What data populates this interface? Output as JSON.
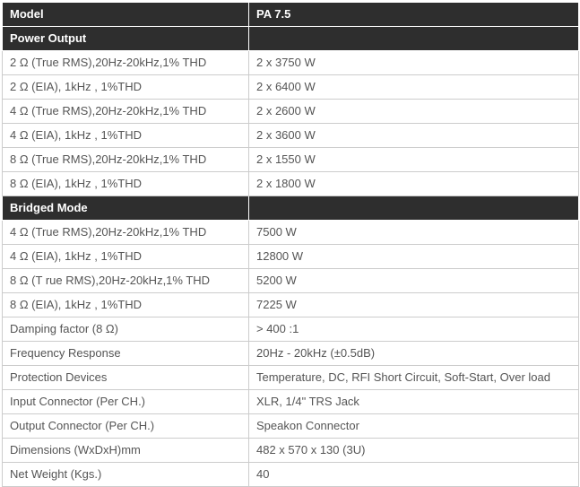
{
  "colors": {
    "section_header_bg": "#2e2e2e",
    "section_header_text": "#ffffff",
    "cell_text": "#555555",
    "cell_border": "#cccccc"
  },
  "rows": [
    {
      "type": "header",
      "label": "Model",
      "value": "PA 7.5"
    },
    {
      "type": "section",
      "label": "Power Output",
      "value": ""
    },
    {
      "type": "data",
      "label": "2 Ω (True RMS),20Hz-20kHz,1% THD",
      "value": "2 x 3750 W"
    },
    {
      "type": "data",
      "label": "2 Ω (EIA), 1kHz , 1%THD",
      "value": "2 x 6400 W"
    },
    {
      "type": "data",
      "label": "4 Ω (True RMS),20Hz-20kHz,1% THD",
      "value": "2 x 2600 W"
    },
    {
      "type": "data",
      "label": "4 Ω (EIA), 1kHz , 1%THD",
      "value": "2 x 3600 W"
    },
    {
      "type": "data",
      "label": "8 Ω (True RMS),20Hz-20kHz,1% THD",
      "value": "2 x 1550 W"
    },
    {
      "type": "data",
      "label": "8 Ω (EIA), 1kHz , 1%THD",
      "value": "2 x 1800 W"
    },
    {
      "type": "section",
      "label": "Bridged Mode",
      "value": ""
    },
    {
      "type": "data",
      "label": "4 Ω (True RMS),20Hz-20kHz,1% THD",
      "value": "7500 W"
    },
    {
      "type": "data",
      "label": "4 Ω (EIA), 1kHz , 1%THD",
      "value": "12800 W"
    },
    {
      "type": "data",
      "label": "8 Ω (T rue RMS),20Hz-20kHz,1% THD",
      "value": "5200 W"
    },
    {
      "type": "data",
      "label": "8 Ω (EIA), 1kHz , 1%THD",
      "value": "7225 W"
    },
    {
      "type": "data",
      "label": "Damping factor (8 Ω)",
      "value": "> 400 :1"
    },
    {
      "type": "data",
      "label": "Frequency Response",
      "value": "20Hz - 20kHz (±0.5dB)"
    },
    {
      "type": "data",
      "label": "Protection Devices",
      "value": "Temperature, DC, RFI Short Circuit, Soft-Start, Over load"
    },
    {
      "type": "data",
      "label": "Input Connector (Per CH.)",
      "value": "XLR, 1/4\" TRS Jack"
    },
    {
      "type": "data",
      "label": "Output Connector (Per CH.)",
      "value": "Speakon Connector"
    },
    {
      "type": "data",
      "label": "Dimensions (WxDxH)mm",
      "value": "482 x 570 x 130 (3U)"
    },
    {
      "type": "data",
      "label": "Net Weight (Kgs.)",
      "value": "40"
    }
  ]
}
